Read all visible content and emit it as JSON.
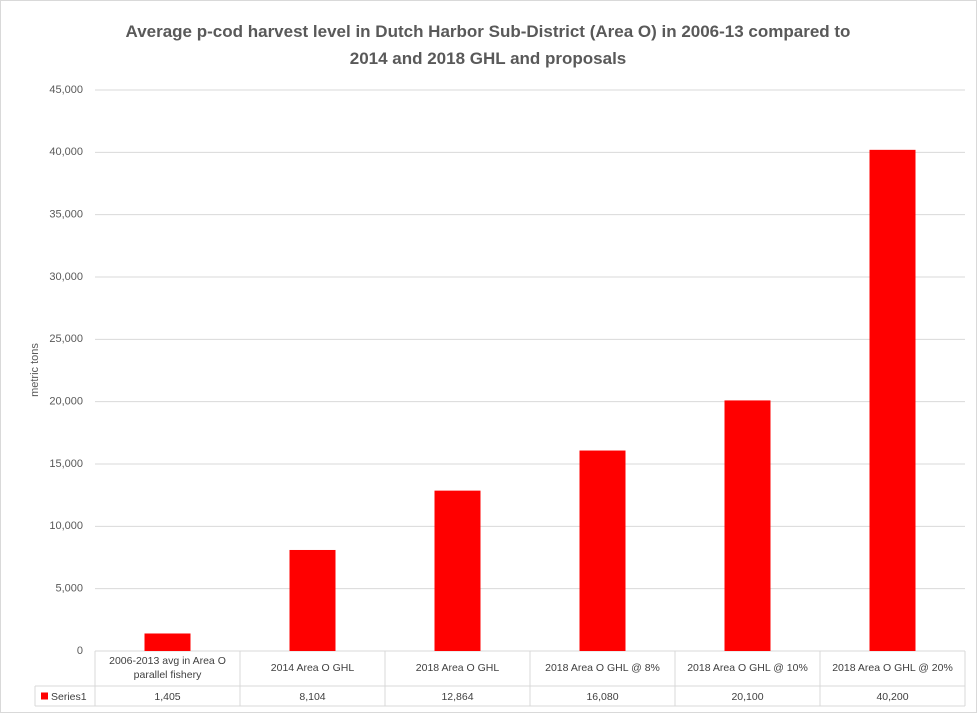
{
  "chart_data": {
    "type": "bar",
    "title": "Average p-cod harvest level in Dutch Harbor Sub-District (Area O) in 2006-13 compared to 2014 and 2018 GHL and proposals",
    "y_label": "metric tons",
    "categories": [
      "2006-2013 avg in Area O parallel fishery",
      "2014 Area O GHL",
      "2018 Area O GHL",
      "2018 Area O GHL @ 8%",
      "2018 Area O GHL @ 10%",
      "2018 Area O GHL @ 20%"
    ],
    "series": [
      {
        "name": "Series1",
        "color": "#ff0000",
        "values": [
          1405,
          8104,
          12864,
          16080,
          20100,
          40200
        ],
        "value_labels": [
          "1,405",
          "8,104",
          "12,864",
          "16,080",
          "20,100",
          "40,200"
        ]
      }
    ],
    "ylim": [
      0,
      45000
    ],
    "yticks": [
      0,
      {
        "value": 5000,
        "label": "5,000"
      },
      {
        "value": 10000,
        "label": "10,000"
      },
      {
        "value": 15000,
        "label": "15,000"
      },
      {
        "value": 20000,
        "label": "20,000"
      },
      {
        "value": 25000,
        "label": "25,000"
      },
      {
        "value": 30000,
        "label": "30,000"
      },
      {
        "value": 35000,
        "label": "35,000"
      },
      {
        "value": 40000,
        "label": "40,000"
      },
      {
        "value": 45000,
        "label": "45,000"
      }
    ],
    "grid": true
  }
}
